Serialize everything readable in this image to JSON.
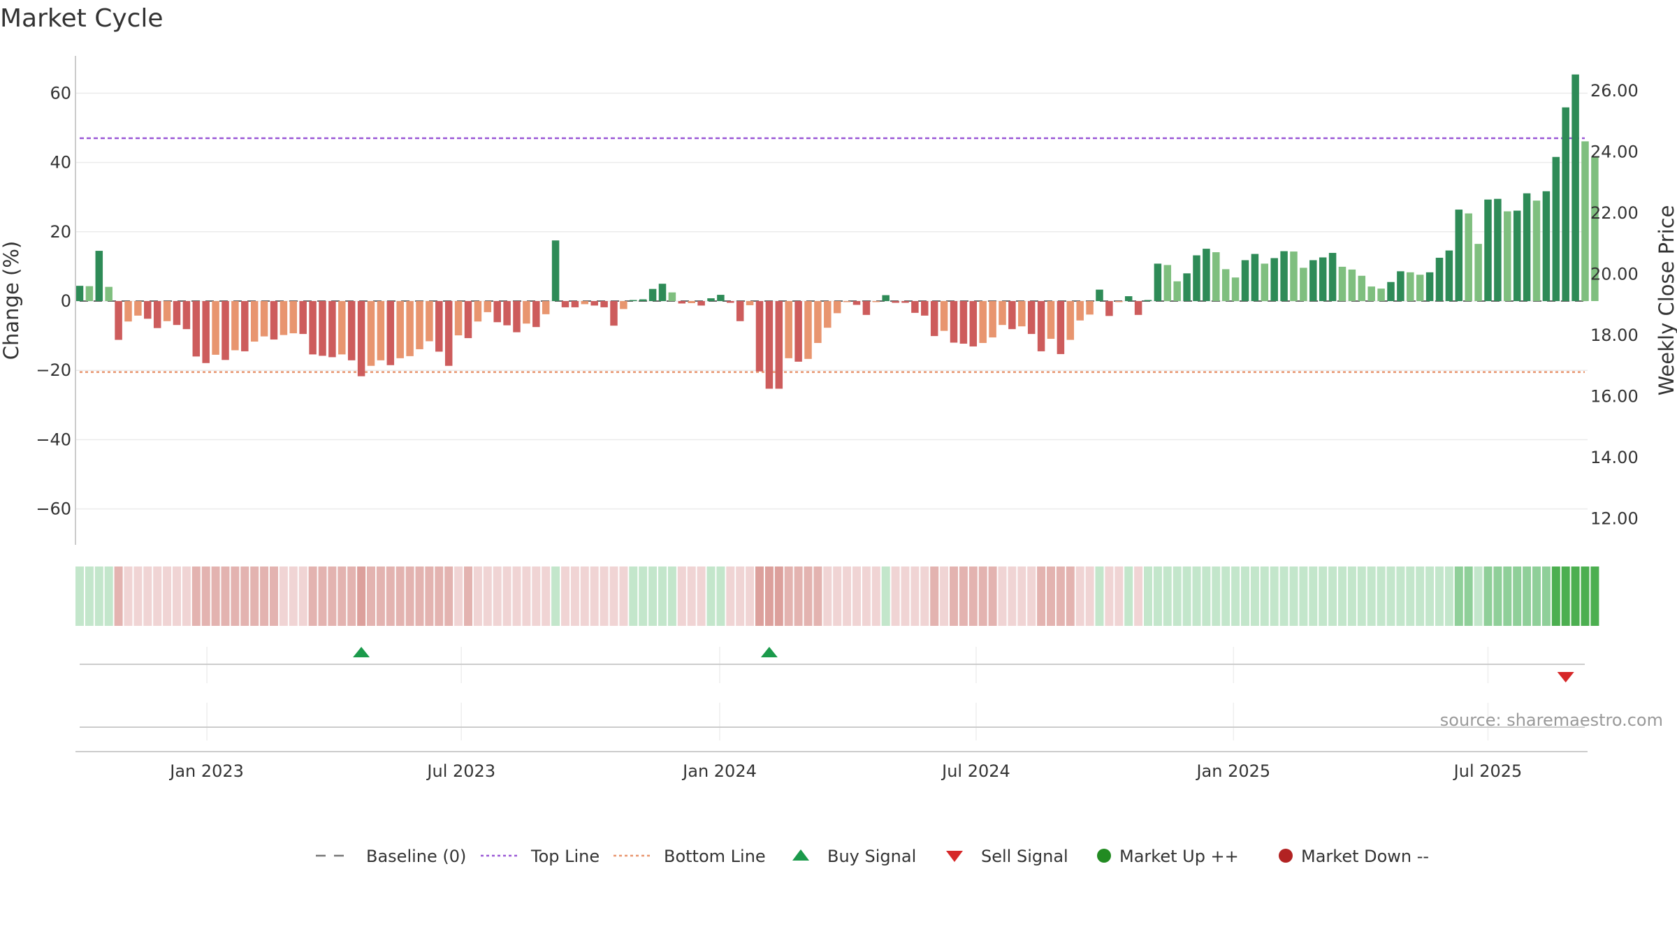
{
  "chart_data": {
    "title": "Market Cycle",
    "type": "bar",
    "y_left": {
      "label": "Change (%)",
      "ticks": [
        60,
        40,
        20,
        0,
        -20,
        -40,
        -60
      ],
      "tick_labels": [
        "60",
        "40",
        "20",
        "0",
        "−20",
        "−40",
        "−60"
      ],
      "range": [
        -70,
        70
      ]
    },
    "y_right": {
      "label": "Weekly Close Price",
      "ticks": [
        26,
        24,
        22,
        20,
        18,
        16,
        14,
        12
      ],
      "tick_labels": [
        "26.00",
        "24.00",
        "22.00",
        "20.00",
        "18.00",
        "16.00",
        "14.00",
        "12.00"
      ]
    },
    "x_axis": {
      "labels": [
        "Jan 2023",
        "Jul 2023",
        "Jan 2024",
        "Jul 2024",
        "Jan 2025",
        "Jul 2025"
      ],
      "label_week_index": [
        13.1,
        39.3,
        65.9,
        92.3,
        118.8,
        145.0
      ]
    },
    "reference_lines": {
      "baseline": 0,
      "top_line": 47,
      "bottom_line": -20.5
    },
    "weekly_change": [
      4.4,
      4.3,
      14.5,
      4.1,
      -11.2,
      -5.9,
      -4.2,
      -5.1,
      -7.8,
      -5.8,
      -6.9,
      -8.1,
      -16,
      -17.9,
      -15.5,
      -17,
      -14.2,
      -14.5,
      -11.7,
      -10.2,
      -11.1,
      -9.8,
      -9.3,
      -9.5,
      -15.4,
      -15.8,
      -16.2,
      -15.4,
      -17.1,
      -21.7,
      -18.7,
      -17.1,
      -18.5,
      -16.5,
      -15.9,
      -13.9,
      -11.6,
      -14.6,
      -18.7,
      -9.9,
      -10.7,
      -5.9,
      -3.2,
      -6.1,
      -7,
      -9,
      -6.5,
      -7.5,
      -3.8,
      17.5,
      -1.8,
      -1.8,
      -0.9,
      -1.3,
      -1.8,
      -7.1,
      -2.3,
      0.3,
      0.5,
      3.5,
      5,
      2.5,
      -0.7,
      -0.6,
      -1.3,
      0.8,
      1.8,
      -0.5,
      -5.8,
      -1.2,
      -20.3,
      -25.3,
      -25.3,
      -16.5,
      -17.5,
      -16.7,
      -12.1,
      -7.7,
      -3.5,
      -0.3,
      -1.1,
      -4,
      -0.3,
      1.7,
      -0.5,
      -0.5,
      -3.4,
      -4.2,
      -10.1,
      -8.6,
      -12,
      -12.3,
      -13.1,
      -12.1,
      -10.5,
      -6.9,
      -8.1,
      -7.3,
      -9.5,
      -14.5,
      -10.9,
      -15.3,
      -11.2,
      -5.6,
      -3.9,
      3.3,
      -4.3,
      -0.3,
      1.4,
      -4,
      0.3,
      10.8,
      10.4,
      5.7,
      8,
      13.2,
      15.1,
      14.1,
      9.2,
      6.8,
      11.8,
      13.6,
      10.8,
      12.4,
      14.4,
      14.3,
      9.6,
      11.8,
      12.6,
      13.9,
      9.9,
      9.1,
      7.3,
      4.2,
      3.6,
      5.5,
      8.6,
      8.3,
      7.6,
      8.3,
      12.5,
      14.6,
      26.4,
      25.3,
      16.5,
      29.3,
      29.5,
      25.9,
      26.1,
      31.1,
      29,
      31.7,
      41.6,
      55.9,
      65.4,
      46.1,
      41.7
    ],
    "bar_colors": {
      "strong_up": "#2e8b57",
      "up": "#7fbf7f",
      "down": "#e8956f",
      "strong_down": "#cd5c5c"
    },
    "regime_strip_colors": {
      "green_light": "#c3e6cb",
      "green_mid": "#8fcf99",
      "green_dark": "#4caf50",
      "red_light": "#f0d4d4",
      "red_mid": "#e3b3b0",
      "red_dark": "#dca09c"
    },
    "buy_signals": [
      {
        "week": 29
      },
      {
        "week": 71
      }
    ],
    "sell_signals": [
      {
        "week": 153
      }
    ],
    "source": "source: sharemaestro.com",
    "legend": [
      {
        "label": "Baseline (0)",
        "symbol": "dash",
        "color": "#777777"
      },
      {
        "label": "Top Line",
        "symbol": "dotted",
        "color": "#9b59d6"
      },
      {
        "label": "Bottom Line",
        "symbol": "dotted",
        "color": "#e8956f"
      },
      {
        "label": "Buy Signal",
        "symbol": "triangle-up",
        "color": "#1b9a4b"
      },
      {
        "label": "Sell Signal",
        "symbol": "triangle-down",
        "color": "#d62728"
      },
      {
        "label": "Market Up ++",
        "symbol": "circle",
        "color": "#228b22"
      },
      {
        "label": "Market Down --",
        "symbol": "circle",
        "color": "#b22222"
      }
    ]
  }
}
